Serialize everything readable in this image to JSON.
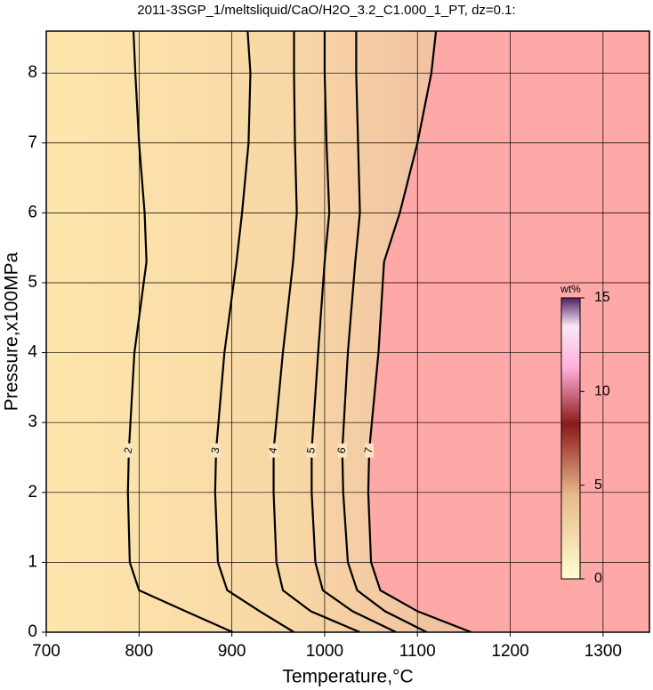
{
  "chart_data": {
    "type": "contour",
    "title": "2011-3SGP_1/meltsliquid/CaO/H2O_3.2_C1.000_1_PT, dz=0.1:",
    "x_label": "Temperature,°C",
    "y_label": "Pressure,x100MPa",
    "xlim": [
      700,
      1350
    ],
    "ylim": [
      0,
      8.6
    ],
    "xticks": [
      700,
      800,
      900,
      1000,
      1100,
      1200,
      1300
    ],
    "yticks": [
      0,
      1,
      2,
      3,
      4,
      5,
      6,
      7,
      8
    ],
    "grid": true,
    "series": [
      {
        "name": "2",
        "x": [
          901,
          850,
          800,
          790,
          788,
          789,
          795,
          808,
          806,
          800,
          796,
          794
        ],
        "y": [
          0,
          0.3,
          0.6,
          1,
          2,
          2.6,
          4,
          5.3,
          6,
          7,
          8,
          8.6
        ]
      },
      {
        "name": "3",
        "x": [
          967,
          930,
          895,
          885,
          882,
          883,
          892,
          905,
          911,
          918,
          920,
          917
        ],
        "y": [
          0,
          0.3,
          0.6,
          1,
          2,
          2.6,
          4,
          5.3,
          6,
          7,
          8,
          8.6
        ]
      },
      {
        "name": "4",
        "x": [
          1038,
          985,
          955,
          948,
          945,
          945,
          955,
          966,
          970,
          968,
          967,
          967
        ],
        "y": [
          0,
          0.3,
          0.6,
          1,
          2,
          2.6,
          4,
          5.3,
          6,
          7,
          8,
          8.6
        ]
      },
      {
        "name": "5",
        "x": [
          1077,
          1030,
          998,
          990,
          986,
          986,
          993,
          1000,
          1005,
          1002,
          1000,
          1000
        ],
        "y": [
          0,
          0.3,
          0.6,
          1,
          2,
          2.6,
          4,
          5.3,
          6,
          7,
          8,
          8.6
        ]
      },
      {
        "name": "6",
        "x": [
          1110,
          1065,
          1035,
          1025,
          1020,
          1019,
          1025,
          1033,
          1038,
          1036,
          1034,
          1034
        ],
        "y": [
          0,
          0.3,
          0.6,
          1,
          2,
          2.6,
          4,
          5.3,
          6,
          7,
          8,
          8.6
        ]
      },
      {
        "name": "7",
        "x": [
          1158,
          1100,
          1060,
          1050,
          1047,
          1048,
          1058,
          1064,
          1081,
          1100,
          1115,
          1120
        ],
        "y": [
          0,
          0.3,
          0.6,
          1,
          2,
          2.6,
          4,
          5.3,
          6,
          7,
          8,
          8.6
        ]
      }
    ],
    "outside_color": "#fea8a8",
    "colorbar": {
      "label": "wt%",
      "lim": [
        0,
        15
      ],
      "ticks": [
        0,
        5,
        10,
        15
      ]
    }
  }
}
